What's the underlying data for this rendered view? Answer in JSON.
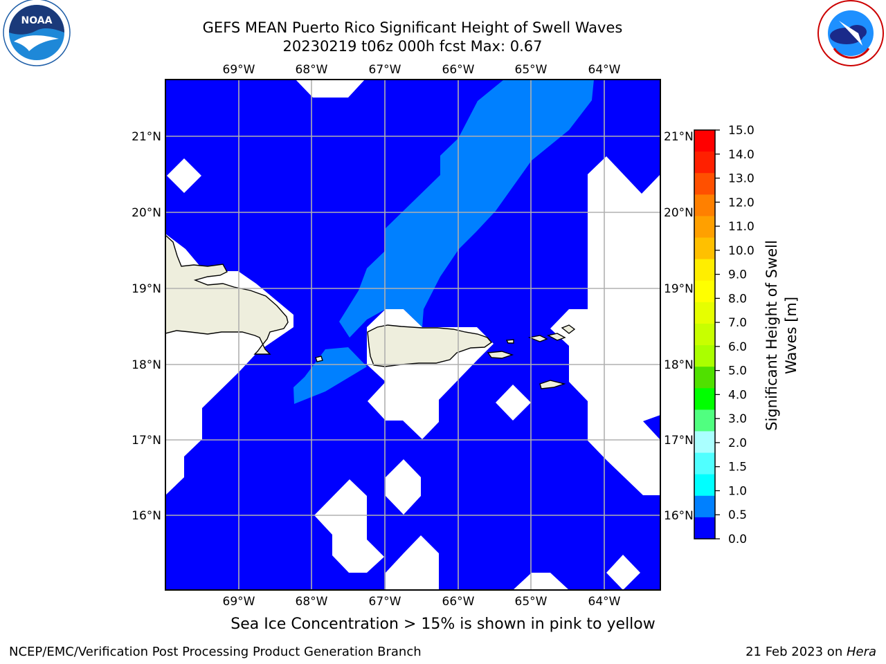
{
  "header": {
    "title_line1": "GEFS MEAN Puerto Rico Significant Height of Swell Waves",
    "title_line2": "20230219 t06z 000h fcst   Max: 0.67"
  },
  "logos": {
    "left": "NOAA",
    "left_ring_text": "NATIONAL OCEANIC AND ATMOSPHERIC ADMINISTRATION · U.S. DEPARTMENT OF COMMERCE",
    "right_ring_text": "NATIONAL WEATHER SERVICE"
  },
  "map": {
    "lon_labels": [
      "69°W",
      "68°W",
      "67°W",
      "66°W",
      "65°W",
      "64°W"
    ],
    "lat_labels": [
      "21°N",
      "20°N",
      "19°N",
      "18°N",
      "17°N",
      "16°N"
    ],
    "ocean_color": "#0000ff",
    "swell_band_color": "#0080ff",
    "land_color": "#eeeedd",
    "nodata_color": "#ffffff"
  },
  "colorbar": {
    "label": "Significant Height of Swell Waves [m]",
    "label_line1": "Significant Height of Swell",
    "label_line2": "Waves [m]",
    "ticks": [
      "15.0",
      "14.0",
      "13.0",
      "12.0",
      "11.0",
      "10.0",
      "9.0",
      "8.0",
      "7.0",
      "6.0",
      "5.0",
      "4.0",
      "3.0",
      "2.0",
      "1.5",
      "1.0",
      "0.5",
      "0.0"
    ],
    "colors_top_to_bottom": [
      "#ff0000",
      "#ff2000",
      "#ff5000",
      "#ff8000",
      "#ffa000",
      "#ffc000",
      "#ffee00",
      "#ffff00",
      "#e6ff00",
      "#c8ff00",
      "#aaff00",
      "#50e000",
      "#00ff00",
      "#50ff80",
      "#aaffff",
      "#50ffff",
      "#00ffff",
      "#0080ff",
      "#0000ff"
    ]
  },
  "note": "Sea Ice Concentration > 15% is shown in pink to yellow",
  "footer": {
    "left": "NCEP/EMC/Verification Post Processing Product Generation Branch",
    "right_prefix": "21 Feb 2023 on ",
    "right_host": "Hera"
  }
}
